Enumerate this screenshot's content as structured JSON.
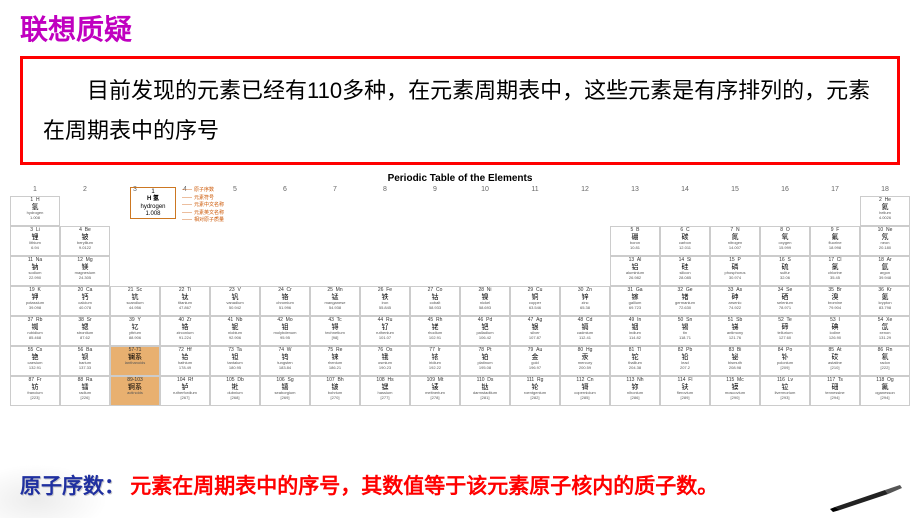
{
  "heading": "联想质疑",
  "paragraph": "目前发现的元素已经有110多种，在元素周期表中，这些元素是有序排列的，元素在周期表中的序号",
  "ptable_title": "Periodic Table of the Elements",
  "legend": {
    "num": "1",
    "sym": "H",
    "cn": "氢",
    "en": "hydrogen",
    "mass": "1.008",
    "labels": [
      "原子序数",
      "元素符号",
      "元素中文名称",
      "元素英文名称",
      "相对原子质量"
    ]
  },
  "footer_label": "原子序数：",
  "footer_def": "元素在周期表中的序号，其数值等于该元素原子核内的质子数。",
  "colors": {
    "heading": "#c000c0",
    "box_border": "#ff0000",
    "lan_bg": "#e8b070",
    "footer_label": "#2030a0",
    "footer_def": "#ff0000"
  },
  "columns": [
    "1",
    "2",
    "3",
    "4",
    "5",
    "6",
    "7",
    "8",
    "9",
    "10",
    "11",
    "12",
    "13",
    "14",
    "15",
    "16",
    "17",
    "18"
  ],
  "rows": [
    [
      {
        "n": "1",
        "s": "H",
        "c": "氢",
        "e": "hydrogen",
        "m": "1.008"
      },
      null,
      null,
      null,
      null,
      null,
      null,
      null,
      null,
      null,
      null,
      null,
      null,
      null,
      null,
      null,
      null,
      {
        "n": "2",
        "s": "He",
        "c": "氦",
        "e": "helium",
        "m": "4.0026"
      }
    ],
    [
      {
        "n": "3",
        "s": "Li",
        "c": "锂",
        "e": "lithium",
        "m": "6.94"
      },
      {
        "n": "4",
        "s": "Be",
        "c": "铍",
        "e": "beryllium",
        "m": "9.0122"
      },
      null,
      null,
      null,
      null,
      null,
      null,
      null,
      null,
      null,
      null,
      {
        "n": "5",
        "s": "B",
        "c": "硼",
        "e": "boron",
        "m": "10.81"
      },
      {
        "n": "6",
        "s": "C",
        "c": "碳",
        "e": "carbon",
        "m": "12.011"
      },
      {
        "n": "7",
        "s": "N",
        "c": "氮",
        "e": "nitrogen",
        "m": "14.007"
      },
      {
        "n": "8",
        "s": "O",
        "c": "氧",
        "e": "oxygen",
        "m": "15.999"
      },
      {
        "n": "9",
        "s": "F",
        "c": "氟",
        "e": "fluorine",
        "m": "18.998"
      },
      {
        "n": "10",
        "s": "Ne",
        "c": "氖",
        "e": "neon",
        "m": "20.180"
      }
    ],
    [
      {
        "n": "11",
        "s": "Na",
        "c": "钠",
        "e": "sodium",
        "m": "22.990"
      },
      {
        "n": "12",
        "s": "Mg",
        "c": "镁",
        "e": "magnesium",
        "m": "24.305"
      },
      null,
      null,
      null,
      null,
      null,
      null,
      null,
      null,
      null,
      null,
      {
        "n": "13",
        "s": "Al",
        "c": "铝",
        "e": "aluminium",
        "m": "26.982"
      },
      {
        "n": "14",
        "s": "Si",
        "c": "硅",
        "e": "silicon",
        "m": "28.085"
      },
      {
        "n": "15",
        "s": "P",
        "c": "磷",
        "e": "phosphorus",
        "m": "30.974"
      },
      {
        "n": "16",
        "s": "S",
        "c": "硫",
        "e": "sulfur",
        "m": "32.06"
      },
      {
        "n": "17",
        "s": "Cl",
        "c": "氯",
        "e": "chlorine",
        "m": "35.45"
      },
      {
        "n": "18",
        "s": "Ar",
        "c": "氩",
        "e": "argon",
        "m": "39.948"
      }
    ],
    [
      {
        "n": "19",
        "s": "K",
        "c": "钾",
        "e": "potassium",
        "m": "39.098"
      },
      {
        "n": "20",
        "s": "Ca",
        "c": "钙",
        "e": "calcium",
        "m": "40.078"
      },
      {
        "n": "21",
        "s": "Sc",
        "c": "钪",
        "e": "scandium",
        "m": "44.956"
      },
      {
        "n": "22",
        "s": "Ti",
        "c": "钛",
        "e": "titanium",
        "m": "47.867"
      },
      {
        "n": "23",
        "s": "V",
        "c": "钒",
        "e": "vanadium",
        "m": "50.942"
      },
      {
        "n": "24",
        "s": "Cr",
        "c": "铬",
        "e": "chromium",
        "m": "51.996"
      },
      {
        "n": "25",
        "s": "Mn",
        "c": "锰",
        "e": "manganese",
        "m": "54.938"
      },
      {
        "n": "26",
        "s": "Fe",
        "c": "铁",
        "e": "iron",
        "m": "55.845"
      },
      {
        "n": "27",
        "s": "Co",
        "c": "钴",
        "e": "cobalt",
        "m": "58.933"
      },
      {
        "n": "28",
        "s": "Ni",
        "c": "镍",
        "e": "nickel",
        "m": "58.693"
      },
      {
        "n": "29",
        "s": "Cu",
        "c": "铜",
        "e": "copper",
        "m": "63.546"
      },
      {
        "n": "30",
        "s": "Zn",
        "c": "锌",
        "e": "zinc",
        "m": "65.38"
      },
      {
        "n": "31",
        "s": "Ga",
        "c": "镓",
        "e": "gallium",
        "m": "69.723"
      },
      {
        "n": "32",
        "s": "Ge",
        "c": "锗",
        "e": "germanium",
        "m": "72.630"
      },
      {
        "n": "33",
        "s": "As",
        "c": "砷",
        "e": "arsenic",
        "m": "74.922"
      },
      {
        "n": "34",
        "s": "Se",
        "c": "硒",
        "e": "selenium",
        "m": "78.971"
      },
      {
        "n": "35",
        "s": "Br",
        "c": "溴",
        "e": "bromine",
        "m": "79.904"
      },
      {
        "n": "36",
        "s": "Kr",
        "c": "氪",
        "e": "krypton",
        "m": "83.798"
      }
    ],
    [
      {
        "n": "37",
        "s": "Rb",
        "c": "铷",
        "e": "rubidium",
        "m": "85.468"
      },
      {
        "n": "38",
        "s": "Sr",
        "c": "锶",
        "e": "strontium",
        "m": "87.62"
      },
      {
        "n": "39",
        "s": "Y",
        "c": "钇",
        "e": "yttrium",
        "m": "88.906"
      },
      {
        "n": "40",
        "s": "Zr",
        "c": "锆",
        "e": "zirconium",
        "m": "91.224"
      },
      {
        "n": "41",
        "s": "Nb",
        "c": "铌",
        "e": "niobium",
        "m": "92.906"
      },
      {
        "n": "42",
        "s": "Mo",
        "c": "钼",
        "e": "molybdenum",
        "m": "95.95"
      },
      {
        "n": "43",
        "s": "Tc",
        "c": "锝",
        "e": "technetium",
        "m": "[98]"
      },
      {
        "n": "44",
        "s": "Ru",
        "c": "钌",
        "e": "ruthenium",
        "m": "101.07"
      },
      {
        "n": "45",
        "s": "Rh",
        "c": "铑",
        "e": "rhodium",
        "m": "102.91"
      },
      {
        "n": "46",
        "s": "Pd",
        "c": "钯",
        "e": "palladium",
        "m": "106.42"
      },
      {
        "n": "47",
        "s": "Ag",
        "c": "银",
        "e": "silver",
        "m": "107.87"
      },
      {
        "n": "48",
        "s": "Cd",
        "c": "镉",
        "e": "cadmium",
        "m": "112.41"
      },
      {
        "n": "49",
        "s": "In",
        "c": "铟",
        "e": "indium",
        "m": "114.82"
      },
      {
        "n": "50",
        "s": "Sn",
        "c": "锡",
        "e": "tin",
        "m": "118.71"
      },
      {
        "n": "51",
        "s": "Sb",
        "c": "锑",
        "e": "antimony",
        "m": "121.76"
      },
      {
        "n": "52",
        "s": "Te",
        "c": "碲",
        "e": "tellurium",
        "m": "127.60"
      },
      {
        "n": "53",
        "s": "I",
        "c": "碘",
        "e": "iodine",
        "m": "126.90"
      },
      {
        "n": "54",
        "s": "Xe",
        "c": "氙",
        "e": "xenon",
        "m": "131.29"
      }
    ],
    [
      {
        "n": "55",
        "s": "Cs",
        "c": "铯",
        "e": "caesium",
        "m": "132.91"
      },
      {
        "n": "56",
        "s": "Ba",
        "c": "钡",
        "e": "barium",
        "m": "137.33"
      },
      {
        "n": "57-71",
        "s": "",
        "c": "镧系",
        "e": "lanthanoids",
        "m": "",
        "lan": true
      },
      {
        "n": "72",
        "s": "Hf",
        "c": "铪",
        "e": "hafnium",
        "m": "178.49"
      },
      {
        "n": "73",
        "s": "Ta",
        "c": "钽",
        "e": "tantalum",
        "m": "180.95"
      },
      {
        "n": "74",
        "s": "W",
        "c": "钨",
        "e": "tungsten",
        "m": "183.84"
      },
      {
        "n": "75",
        "s": "Re",
        "c": "铼",
        "e": "rhenium",
        "m": "186.21"
      },
      {
        "n": "76",
        "s": "Os",
        "c": "锇",
        "e": "osmium",
        "m": "190.23"
      },
      {
        "n": "77",
        "s": "Ir",
        "c": "铱",
        "e": "iridium",
        "m": "192.22"
      },
      {
        "n": "78",
        "s": "Pt",
        "c": "铂",
        "e": "platinum",
        "m": "195.08"
      },
      {
        "n": "79",
        "s": "Au",
        "c": "金",
        "e": "gold",
        "m": "196.97"
      },
      {
        "n": "80",
        "s": "Hg",
        "c": "汞",
        "e": "mercury",
        "m": "200.59"
      },
      {
        "n": "81",
        "s": "Tl",
        "c": "铊",
        "e": "thallium",
        "m": "204.38"
      },
      {
        "n": "82",
        "s": "Pb",
        "c": "铅",
        "e": "lead",
        "m": "207.2"
      },
      {
        "n": "83",
        "s": "Bi",
        "c": "铋",
        "e": "bismuth",
        "m": "208.98"
      },
      {
        "n": "84",
        "s": "Po",
        "c": "钋",
        "e": "polonium",
        "m": "[209]"
      },
      {
        "n": "85",
        "s": "At",
        "c": "砹",
        "e": "astatine",
        "m": "[210]"
      },
      {
        "n": "86",
        "s": "Rn",
        "c": "氡",
        "e": "radon",
        "m": "[222]"
      }
    ],
    [
      {
        "n": "87",
        "s": "Fr",
        "c": "钫",
        "e": "francium",
        "m": "[223]"
      },
      {
        "n": "88",
        "s": "Ra",
        "c": "镭",
        "e": "radium",
        "m": "[226]"
      },
      {
        "n": "89-103",
        "s": "",
        "c": "锕系",
        "e": "actinoids",
        "m": "",
        "lan": true
      },
      {
        "n": "104",
        "s": "Rf",
        "c": "𬬻",
        "e": "rutherfordium",
        "m": "[267]"
      },
      {
        "n": "105",
        "s": "Db",
        "c": "𬭊",
        "e": "dubnium",
        "m": "[268]"
      },
      {
        "n": "106",
        "s": "Sg",
        "c": "𬭳",
        "e": "seaborgium",
        "m": "[269]"
      },
      {
        "n": "107",
        "s": "Bh",
        "c": "𬭛",
        "e": "bohrium",
        "m": "[270]"
      },
      {
        "n": "108",
        "s": "Hs",
        "c": "𬭶",
        "e": "hassium",
        "m": "[277]"
      },
      {
        "n": "109",
        "s": "Mt",
        "c": "鿏",
        "e": "meitnerium",
        "m": "[278]"
      },
      {
        "n": "110",
        "s": "Ds",
        "c": "𫟼",
        "e": "darmstadtium",
        "m": "[281]"
      },
      {
        "n": "111",
        "s": "Rg",
        "c": "𬬭",
        "e": "roentgenium",
        "m": "[282]"
      },
      {
        "n": "112",
        "s": "Cn",
        "c": "鿔",
        "e": "copernicium",
        "m": "[285]"
      },
      {
        "n": "113",
        "s": "Nh",
        "c": "鿭",
        "e": "nihonium",
        "m": "[286]"
      },
      {
        "n": "114",
        "s": "Fl",
        "c": "𫓧",
        "e": "flerovium",
        "m": "[289]"
      },
      {
        "n": "115",
        "s": "Mc",
        "c": "镆",
        "e": "moscovium",
        "m": "[290]"
      },
      {
        "n": "116",
        "s": "Lv",
        "c": "𫟷",
        "e": "livermorium",
        "m": "[293]"
      },
      {
        "n": "117",
        "s": "Ts",
        "c": "鿬",
        "e": "tennessine",
        "m": "[294]"
      },
      {
        "n": "118",
        "s": "Og",
        "c": "鿫",
        "e": "oganesson",
        "m": "[294]"
      }
    ]
  ]
}
